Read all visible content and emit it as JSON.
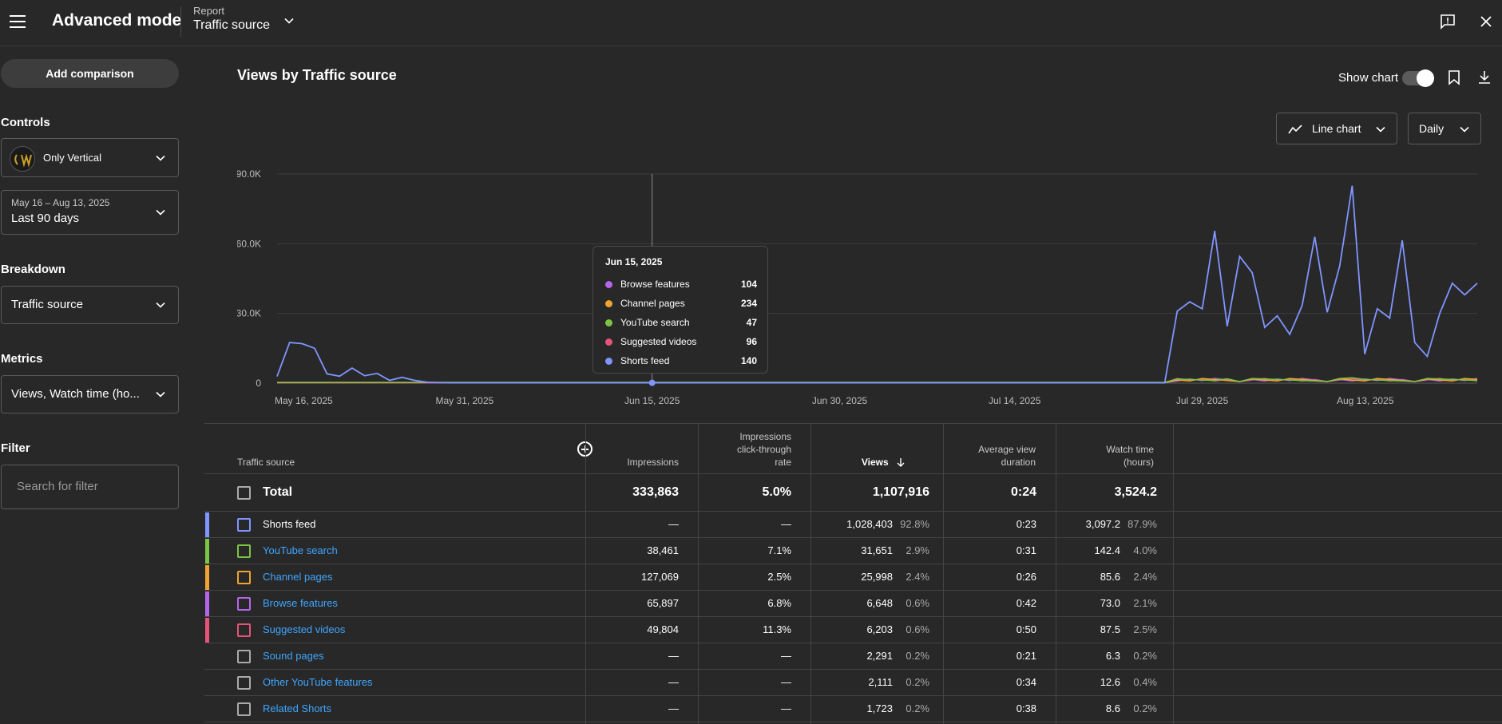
{
  "header": {
    "app_title": "Advanced mode",
    "report_label": "Report",
    "report_value": "Traffic source"
  },
  "sidebar": {
    "add_comparison": "Add comparison",
    "controls_heading": "Controls",
    "channel_name": "Only Vertical",
    "date_range": "May 16 – Aug 13, 2025",
    "date_preset": "Last 90 days",
    "breakdown_heading": "Breakdown",
    "breakdown_value": "Traffic source",
    "metrics_heading": "Metrics",
    "metrics_value": "Views, Watch time (ho...",
    "filter_heading": "Filter",
    "filter_placeholder": "Search for filter"
  },
  "main": {
    "title": "Views by Traffic source",
    "show_chart_label": "Show chart",
    "show_chart_on": true,
    "chart_type_label": "Line chart",
    "granularity_label": "Daily"
  },
  "tooltip": {
    "date": "Jun 15, 2025",
    "rows": [
      {
        "label": "Browse features",
        "value": "104",
        "color": "#b366ea"
      },
      {
        "label": "Channel pages",
        "value": "234",
        "color": "#f0a330"
      },
      {
        "label": "YouTube search",
        "value": "47",
        "color": "#7cc443"
      },
      {
        "label": "Suggested videos",
        "value": "96",
        "color": "#e6537a"
      },
      {
        "label": "Shorts feed",
        "value": "140",
        "color": "#7f95ff"
      }
    ]
  },
  "chart_data": {
    "type": "line",
    "title": "Views by Traffic source",
    "ylim": [
      0,
      90000
    ],
    "y_ticks": [
      "0",
      "30.0K",
      "60.0K",
      "90.0K"
    ],
    "x_tick_labels": [
      "May 16, 2025",
      "May 31, 2025",
      "Jun 15, 2025",
      "Jun 30, 2025",
      "Jul 14, 2025",
      "Jul 29, 2025",
      "Aug 13, 2025"
    ],
    "x_tick_index": [
      0,
      15,
      30,
      45,
      59,
      74,
      89
    ],
    "highlight_index": 30,
    "series": [
      {
        "name": "Shorts feed",
        "color": "#7f95ff",
        "values": [
          2900,
          17500,
          17000,
          15000,
          4000,
          3000,
          6500,
          3200,
          4200,
          1200,
          2500,
          1200,
          400,
          200,
          150,
          150,
          150,
          150,
          150,
          150,
          150,
          150,
          150,
          150,
          150,
          150,
          150,
          150,
          150,
          150,
          140,
          150,
          150,
          150,
          150,
          150,
          150,
          150,
          150,
          150,
          150,
          150,
          150,
          150,
          150,
          150,
          150,
          150,
          150,
          150,
          150,
          150,
          150,
          150,
          150,
          150,
          150,
          150,
          150,
          150,
          150,
          150,
          150,
          150,
          150,
          150,
          150,
          150,
          150,
          150,
          150,
          150,
          31000,
          35000,
          32000,
          65500,
          24500,
          54500,
          47500,
          24000,
          29000,
          21000,
          33500,
          63000,
          30500,
          50500,
          85000,
          12500,
          32000,
          28000,
          61500,
          17500,
          11500,
          30000,
          43000,
          38000,
          43000
        ]
      },
      {
        "name": "YouTube search",
        "color": "#7cc443",
        "values": []
      },
      {
        "name": "Channel pages",
        "color": "#f0a330",
        "values": []
      },
      {
        "name": "Browse features",
        "color": "#b366ea",
        "values": []
      },
      {
        "name": "Suggested videos",
        "color": "#e6537a",
        "values": []
      }
    ]
  },
  "table": {
    "headers": {
      "source": "Traffic source",
      "impressions": "Impressions",
      "ctr": [
        "Impressions",
        "click-through",
        "rate"
      ],
      "views": "Views",
      "avd": [
        "Average view",
        "duration"
      ],
      "watch": [
        "Watch time",
        "(hours)"
      ]
    },
    "total": {
      "name": "Total",
      "impressions": "333,863",
      "ctr": "5.0%",
      "views": "1,107,916",
      "avd": "0:24",
      "watch": "3,524.2"
    },
    "rows": [
      {
        "name": "Shorts feed",
        "link": false,
        "color": "#7f95ff",
        "impressions": "—",
        "ctr": "—",
        "views": "1,028,403",
        "views_pct": "92.8%",
        "avd": "0:23",
        "watch": "3,097.2",
        "watch_pct": "87.9%"
      },
      {
        "name": "YouTube search",
        "link": true,
        "color": "#7cc443",
        "impressions": "38,461",
        "ctr": "7.1%",
        "views": "31,651",
        "views_pct": "2.9%",
        "avd": "0:31",
        "watch": "142.4",
        "watch_pct": "4.0%"
      },
      {
        "name": "Channel pages",
        "link": true,
        "color": "#f0a330",
        "impressions": "127,069",
        "ctr": "2.5%",
        "views": "25,998",
        "views_pct": "2.4%",
        "avd": "0:26",
        "watch": "85.6",
        "watch_pct": "2.4%"
      },
      {
        "name": "Browse features",
        "link": true,
        "color": "#b366ea",
        "impressions": "65,897",
        "ctr": "6.8%",
        "views": "6,648",
        "views_pct": "0.6%",
        "avd": "0:42",
        "watch": "73.0",
        "watch_pct": "2.1%"
      },
      {
        "name": "Suggested videos",
        "link": true,
        "color": "#e6537a",
        "impressions": "49,804",
        "ctr": "11.3%",
        "views": "6,203",
        "views_pct": "0.6%",
        "avd": "0:50",
        "watch": "87.5",
        "watch_pct": "2.5%"
      },
      {
        "name": "Sound pages",
        "link": true,
        "color": "",
        "impressions": "—",
        "ctr": "—",
        "views": "2,291",
        "views_pct": "0.2%",
        "avd": "0:21",
        "watch": "6.3",
        "watch_pct": "0.2%"
      },
      {
        "name": "Other YouTube features",
        "link": true,
        "color": "",
        "impressions": "—",
        "ctr": "—",
        "views": "2,111",
        "views_pct": "0.2%",
        "avd": "0:34",
        "watch": "12.6",
        "watch_pct": "0.4%"
      },
      {
        "name": "Related Shorts",
        "link": true,
        "color": "",
        "impressions": "—",
        "ctr": "—",
        "views": "1,723",
        "views_pct": "0.2%",
        "avd": "0:38",
        "watch": "8.6",
        "watch_pct": "0.2%"
      }
    ]
  }
}
